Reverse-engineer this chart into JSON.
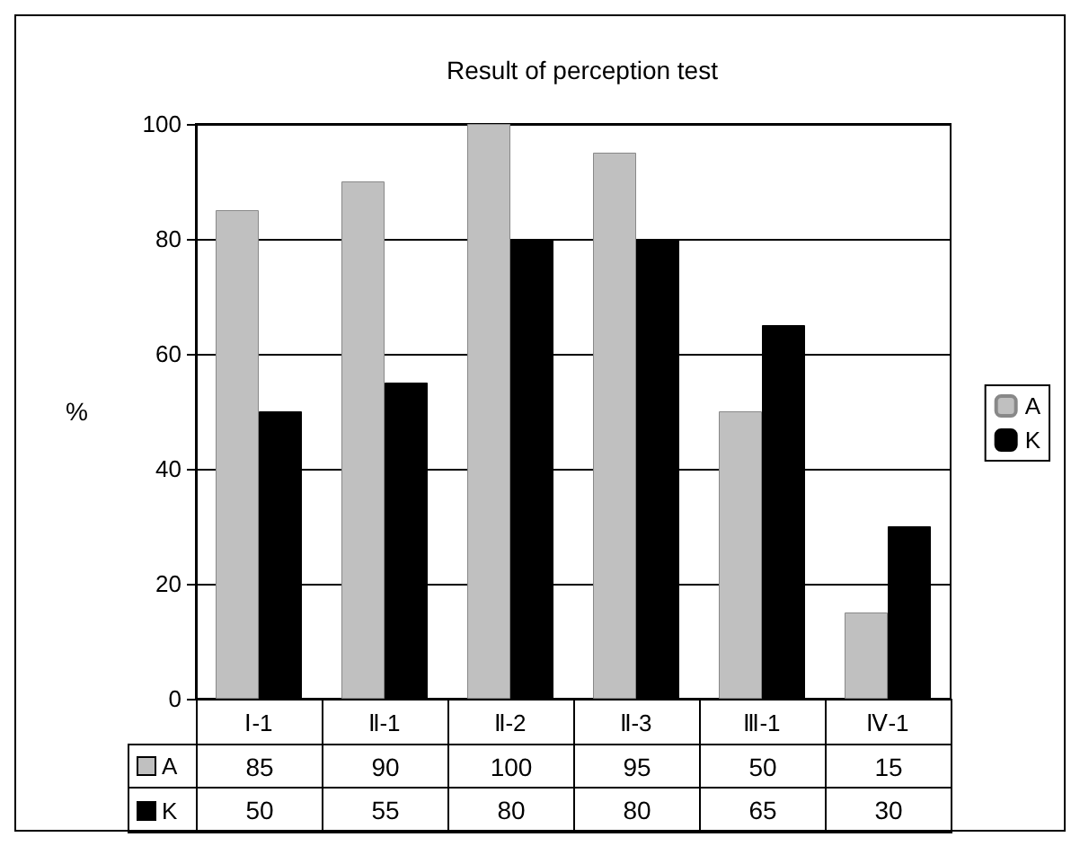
{
  "chart_data": {
    "type": "bar",
    "title": "Result of perception test",
    "ylabel": "%",
    "categories": [
      "Ⅰ-1",
      "Ⅱ-1",
      "Ⅱ-2",
      "Ⅱ-3",
      "Ⅲ-1",
      "Ⅳ-1"
    ],
    "series": [
      {
        "name": "A",
        "color": "#c0c0c0",
        "values": [
          85,
          90,
          100,
          95,
          50,
          15
        ]
      },
      {
        "name": "K",
        "color": "#000000",
        "values": [
          50,
          55,
          80,
          80,
          65,
          30
        ]
      }
    ],
    "ylim": [
      0,
      100
    ],
    "yticks": [
      0,
      20,
      40,
      60,
      80,
      100
    ],
    "grid": "y",
    "legend": "right",
    "data_labels": true
  }
}
